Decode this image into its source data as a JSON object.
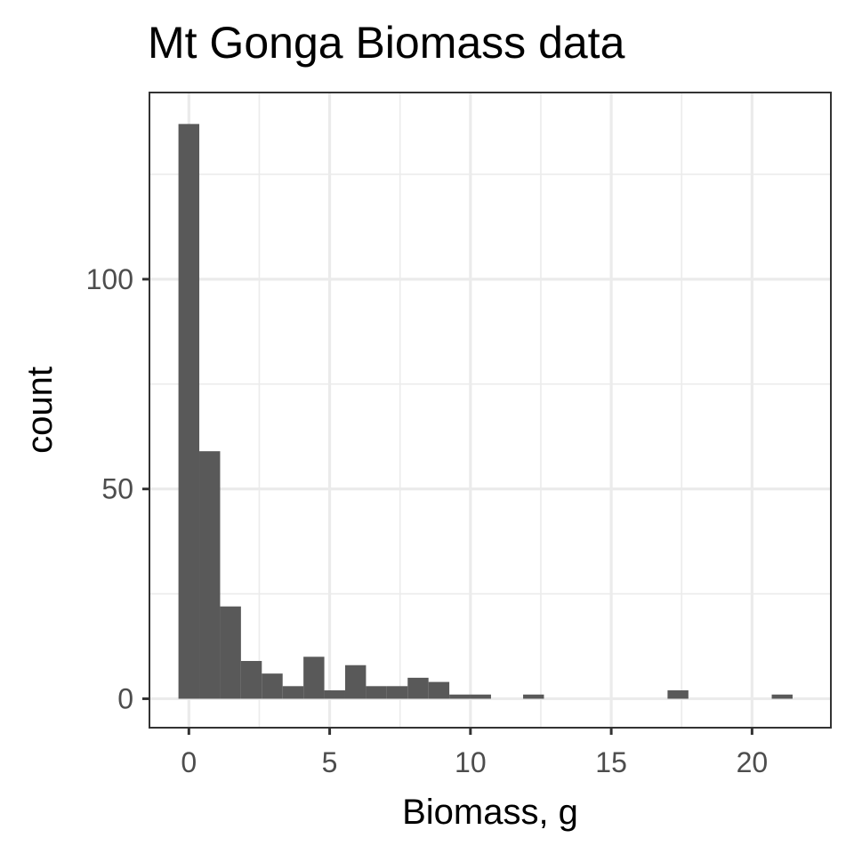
{
  "chart_data": {
    "type": "bar",
    "title": "Mt Gonga Biomass data",
    "xlabel": "Biomass, g",
    "ylabel": "count",
    "xlim": [
      -1.4,
      22.8
    ],
    "ylim": [
      -6.9,
      144.5
    ],
    "x_ticks": [
      0,
      5,
      10,
      15,
      20
    ],
    "y_ticks": [
      0,
      50,
      100
    ],
    "x_minor_ticks": [
      2.5,
      7.5,
      12.5,
      17.5
    ],
    "y_minor_ticks": [
      25,
      75,
      125
    ],
    "bin_width": 0.74,
    "bins": [
      {
        "x_start": -0.37,
        "x_end": 0.37,
        "count": 137
      },
      {
        "x_start": 0.37,
        "x_end": 1.11,
        "count": 59
      },
      {
        "x_start": 1.11,
        "x_end": 1.85,
        "count": 22
      },
      {
        "x_start": 1.85,
        "x_end": 2.59,
        "count": 9
      },
      {
        "x_start": 2.59,
        "x_end": 3.33,
        "count": 6
      },
      {
        "x_start": 3.33,
        "x_end": 4.07,
        "count": 3
      },
      {
        "x_start": 4.07,
        "x_end": 4.81,
        "count": 10
      },
      {
        "x_start": 4.81,
        "x_end": 5.55,
        "count": 2
      },
      {
        "x_start": 5.55,
        "x_end": 6.29,
        "count": 8
      },
      {
        "x_start": 6.29,
        "x_end": 7.03,
        "count": 3
      },
      {
        "x_start": 7.03,
        "x_end": 7.77,
        "count": 3
      },
      {
        "x_start": 7.77,
        "x_end": 8.51,
        "count": 5
      },
      {
        "x_start": 8.51,
        "x_end": 9.25,
        "count": 4
      },
      {
        "x_start": 9.25,
        "x_end": 9.99,
        "count": 1
      },
      {
        "x_start": 9.99,
        "x_end": 10.73,
        "count": 1
      },
      {
        "x_start": 11.87,
        "x_end": 12.61,
        "count": 1
      },
      {
        "x_start": 17.0,
        "x_end": 17.74,
        "count": 2
      },
      {
        "x_start": 20.7,
        "x_end": 21.44,
        "count": 1
      }
    ],
    "grid": true,
    "legend": "none",
    "colors": {
      "bar": "#595959",
      "panel_border": "#333333",
      "grid": "#ebebeb",
      "tick_label": "#4d4d4d",
      "title": "#000000"
    }
  }
}
